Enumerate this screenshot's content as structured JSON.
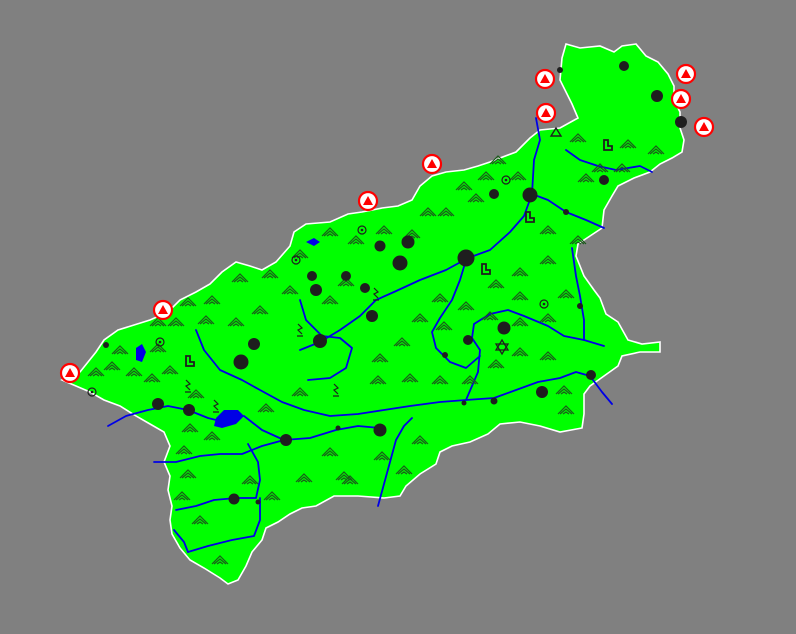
{
  "colors": {
    "background": "#808080",
    "land": "#00ff00",
    "border": "#ffffff",
    "river": "#0000e6",
    "lake": "#0000e6",
    "settlement": "#1e1e1e",
    "mountain": "#1a5a1a",
    "neighbor_marker": "#ff0000"
  },
  "legend_icons": {
    "large_city": "large-city-icon",
    "town": "town-icon",
    "village": "village-icon",
    "mountain": "mountain-icon",
    "mine": "mine-icon",
    "power_station": "power-station-icon",
    "monument": "monument-icon",
    "star": "star-icon",
    "border_neighbor": "neighbor-region-marker-icon"
  }
}
